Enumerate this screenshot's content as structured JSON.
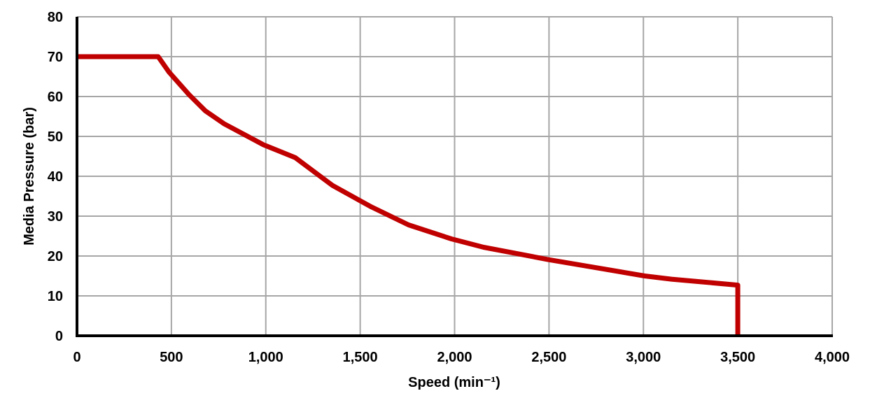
{
  "chart_data": {
    "type": "line",
    "title": "",
    "xlabel": "Speed (min⁻¹)",
    "ylabel": "Media Pressure (bar)",
    "xlim": [
      0,
      4000
    ],
    "ylim": [
      0,
      80
    ],
    "grid": true,
    "x_ticks": [
      0,
      500,
      1000,
      1500,
      2000,
      2500,
      3000,
      3500,
      4000
    ],
    "x_tick_labels": [
      "0",
      "500",
      "1,000",
      "1,500",
      "2,000",
      "2,500",
      "3,000",
      "3,500",
      "4,000"
    ],
    "y_ticks": [
      0,
      10,
      20,
      30,
      40,
      50,
      60,
      70,
      80
    ],
    "y_tick_labels": [
      "0",
      "10",
      "20",
      "30",
      "40",
      "50",
      "60",
      "70",
      "80"
    ],
    "line_color": "#c00000",
    "grid_color": "#a6a6a6",
    "series": [
      {
        "x": [
          0,
          430,
          488,
          593,
          680,
          778,
          988,
          1155,
          1353,
          1560,
          1756,
          1983,
          2154,
          2353,
          2495,
          2722,
          3007,
          3149,
          3500,
          3500
        ],
        "y": [
          70,
          70,
          66.1,
          60.5,
          56.4,
          53.2,
          47.9,
          44.7,
          37.7,
          32.3,
          27.8,
          24.3,
          22.2,
          20.4,
          19.1,
          17.3,
          15.0,
          14.2,
          12.7,
          0
        ]
      }
    ]
  }
}
